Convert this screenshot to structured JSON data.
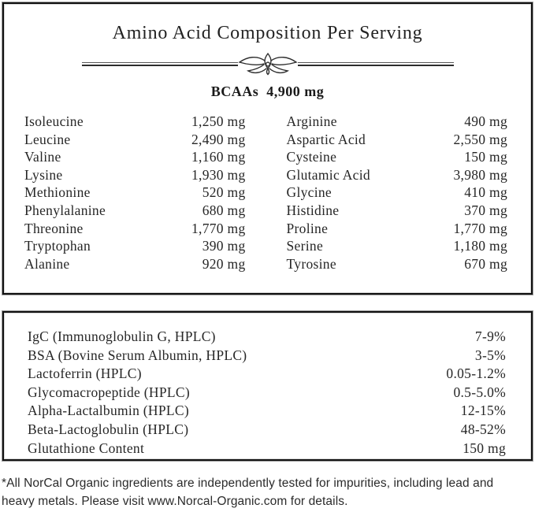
{
  "colors": {
    "text": "#1f1f1f",
    "border": "#121212"
  },
  "panel1": {
    "title": "Amino Acid Composition Per Serving",
    "bcaa": {
      "label": "BCAAs",
      "value": "4,900 mg"
    },
    "columns": {
      "left": [
        {
          "name": "Isoleucine",
          "value": "1,250 mg"
        },
        {
          "name": "Leucine",
          "value": "2,490 mg"
        },
        {
          "name": "Valine",
          "value": "1,160 mg"
        },
        {
          "name": "Lysine",
          "value": "1,930 mg"
        },
        {
          "name": "Methionine",
          "value": "520 mg"
        },
        {
          "name": "Phenylalanine",
          "value": "680 mg"
        },
        {
          "name": "Threonine",
          "value": "1,770 mg"
        },
        {
          "name": "Tryptophan",
          "value": "390 mg"
        },
        {
          "name": "Alanine",
          "value": "920 mg"
        }
      ],
      "right": [
        {
          "name": "Arginine",
          "value": "490 mg"
        },
        {
          "name": "Aspartic Acid",
          "value": "2,550 mg"
        },
        {
          "name": "Cysteine",
          "value": "150 mg"
        },
        {
          "name": "Glutamic Acid",
          "value": "3,980 mg"
        },
        {
          "name": "Glycine",
          "value": "410 mg"
        },
        {
          "name": "Histidine",
          "value": "370 mg"
        },
        {
          "name": "Proline",
          "value": "1,770 mg"
        },
        {
          "name": "Serine",
          "value": "1,180 mg"
        },
        {
          "name": "Tyrosine",
          "value": "670 mg"
        }
      ]
    }
  },
  "panel2": {
    "rows": [
      {
        "name": "IgC (Immunoglobulin G, HPLC)",
        "value": "7-9%"
      },
      {
        "name": "BSA (Bovine Serum Albumin, HPLC)",
        "value": "3-5%"
      },
      {
        "name": "Lactoferrin (HPLC)",
        "value": "0.05-1.2%"
      },
      {
        "name": "Glycomacropeptide (HPLC)",
        "value": "0.5-5.0%"
      },
      {
        "name": "Alpha-Lactalbumin (HPLC)",
        "value": "12-15%"
      },
      {
        "name": "Beta-Lactoglobulin (HPLC)",
        "value": "48-52%"
      },
      {
        "name": "Glutathione Content",
        "value": "150 mg"
      }
    ]
  },
  "footnote": {
    "text": "*All NorCal Organic ingredients are independently tested for impurities, including lead and heavy metals. Please visit www.Norcal-Organic.com for details."
  }
}
